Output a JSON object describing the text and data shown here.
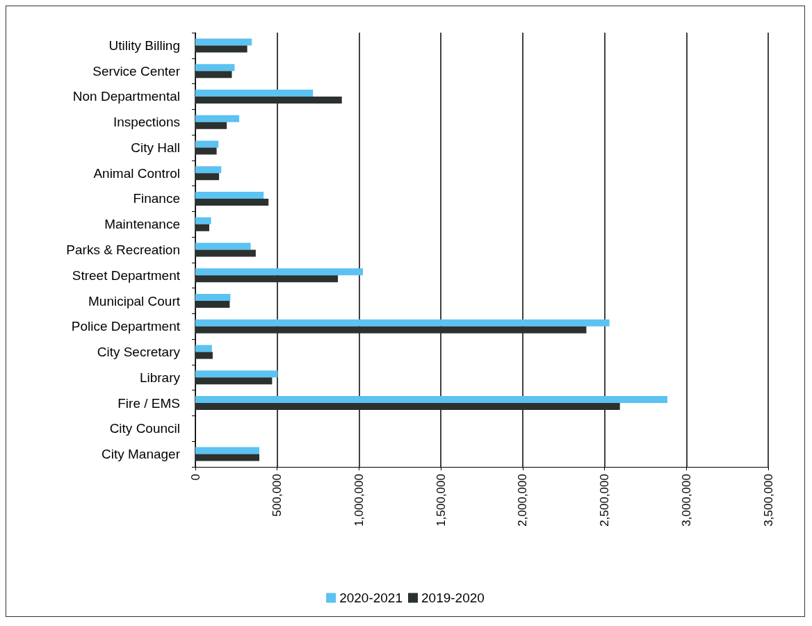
{
  "chart_data": {
    "type": "bar",
    "orientation": "horizontal",
    "categories": [
      "Utility Billing",
      "Service Center",
      "Non Departmental",
      "Inspections",
      "City Hall",
      "Animal Control",
      "Finance",
      "Maintenance",
      "Parks & Recreation",
      "Street Department",
      "Municipal Court",
      "Police Department",
      "City Secretary",
      "Library",
      "Fire / EMS",
      "City Council",
      "City Manager"
    ],
    "series": [
      {
        "name": "2020-2021",
        "color": "#5bc2f2",
        "values": [
          345000,
          240000,
          719000,
          268000,
          141000,
          158000,
          417000,
          96000,
          338000,
          1024000,
          214000,
          2530000,
          101000,
          503000,
          2884000,
          0,
          391000
        ]
      },
      {
        "name": "2019-2020",
        "color": "#2b312f",
        "values": [
          317000,
          223000,
          895000,
          192000,
          130000,
          145000,
          447000,
          85000,
          369000,
          871000,
          210000,
          2389000,
          106000,
          469000,
          2594000,
          0,
          391000
        ]
      }
    ],
    "xlim": [
      0,
      3500000
    ],
    "xticks": [
      {
        "value": 0,
        "label": "0"
      },
      {
        "value": 500000,
        "label": "500,000"
      },
      {
        "value": 1000000,
        "label": "1,000,000"
      },
      {
        "value": 1500000,
        "label": "1,500,000"
      },
      {
        "value": 2000000,
        "label": "2,000,000"
      },
      {
        "value": 2500000,
        "label": "2,500,000"
      },
      {
        "value": 3000000,
        "label": "3,000,000"
      },
      {
        "value": 3500000,
        "label": "3,500,000"
      }
    ],
    "grid": "x",
    "legend": "bottom"
  }
}
